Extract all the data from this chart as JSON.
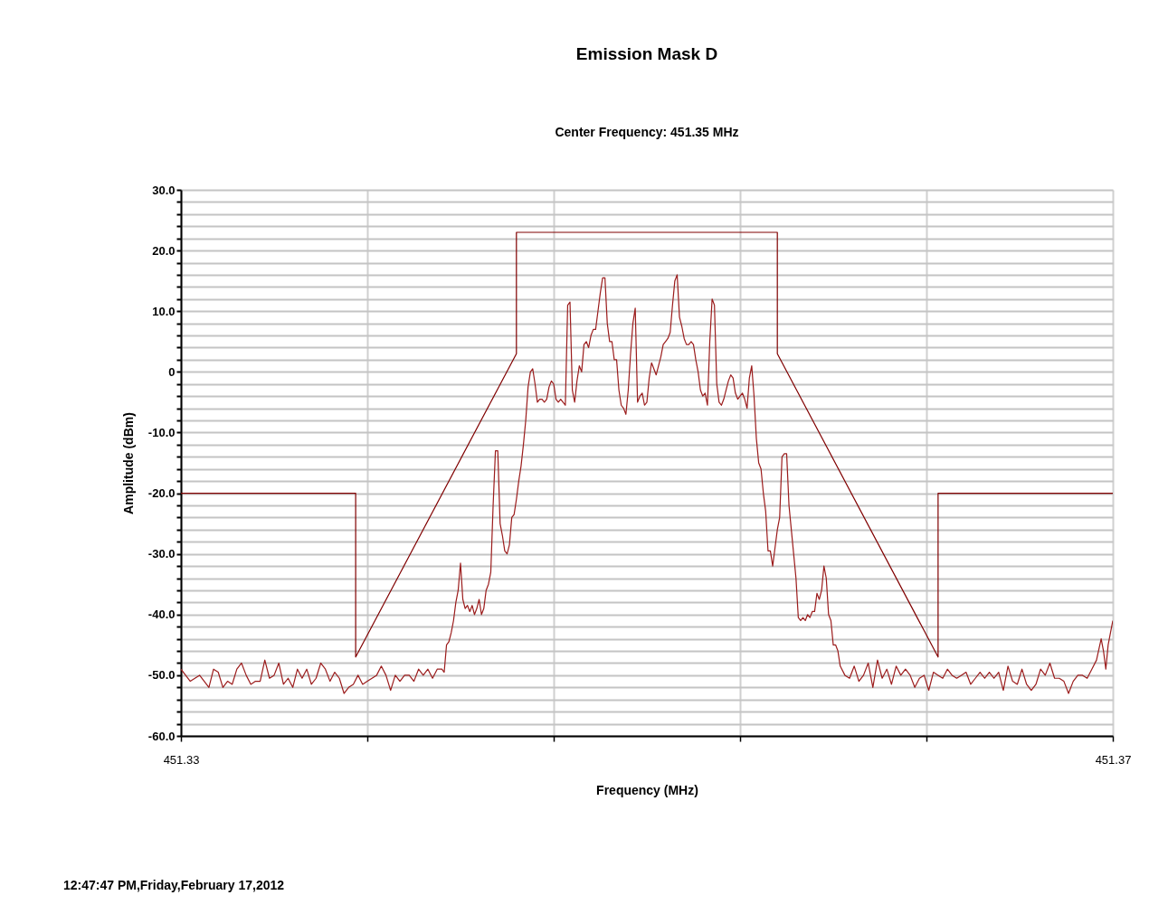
{
  "chart_data": {
    "type": "line",
    "title": "Emission Mask D",
    "subtitle": "Center Frequency:  451.35 MHz",
    "xlabel": "Frequency (MHz)",
    "ylabel": "Amplitude (dBm)",
    "annotations": [
      "12:47:47 PM,Friday,February 17,2012"
    ],
    "xlim": [
      451.33,
      451.37
    ],
    "xticks": [
      451.33,
      {
        "value": 451.338,
        "label": null
      },
      {
        "value": 451.346,
        "label": null
      },
      {
        "value": 451.354,
        "label": null
      },
      {
        "value": 451.362,
        "label": null
      },
      451.37
    ],
    "ylim": [
      -60,
      30
    ],
    "yticks": [
      {
        "value": 30,
        "label": "30.0"
      },
      {
        "value": 28,
        "label": null
      },
      {
        "value": 26,
        "label": null
      },
      {
        "value": 24,
        "label": null
      },
      {
        "value": 22,
        "label": null
      },
      {
        "value": 20,
        "label": "20.0"
      },
      {
        "value": 18,
        "label": null
      },
      {
        "value": 16,
        "label": null
      },
      {
        "value": 14,
        "label": null
      },
      {
        "value": 12,
        "label": null
      },
      {
        "value": 10,
        "label": "10.0"
      },
      {
        "value": 8,
        "label": null
      },
      {
        "value": 6,
        "label": null
      },
      {
        "value": 4,
        "label": null
      },
      {
        "value": 2,
        "label": null
      },
      0,
      {
        "value": -2,
        "label": null
      },
      {
        "value": -4,
        "label": null
      },
      {
        "value": -6,
        "label": null
      },
      {
        "value": -8,
        "label": null
      },
      {
        "value": -10,
        "label": "-10.0"
      },
      {
        "value": -12,
        "label": null
      },
      {
        "value": -14,
        "label": null
      },
      {
        "value": -16,
        "label": null
      },
      {
        "value": -18,
        "label": null
      },
      {
        "value": -20,
        "label": "-20.0"
      },
      {
        "value": -22,
        "label": null
      },
      {
        "value": -24,
        "label": null
      },
      {
        "value": -26,
        "label": null
      },
      {
        "value": -28,
        "label": null
      },
      {
        "value": -30,
        "label": "-30.0"
      },
      {
        "value": -32,
        "label": null
      },
      {
        "value": -34,
        "label": null
      },
      {
        "value": -36,
        "label": null
      },
      {
        "value": -38,
        "label": null
      },
      {
        "value": -40,
        "label": "-40.0"
      },
      {
        "value": -42,
        "label": null
      },
      {
        "value": -44,
        "label": null
      },
      {
        "value": -46,
        "label": null
      },
      {
        "value": -48,
        "label": null
      },
      {
        "value": -50,
        "label": "-50.0"
      },
      {
        "value": -52,
        "label": null
      },
      {
        "value": -54,
        "label": null
      },
      {
        "value": -56,
        "label": null
      },
      {
        "value": -58,
        "label": null
      },
      {
        "value": -60,
        "label": "-60.0"
      }
    ],
    "grid": true,
    "series": [
      {
        "color": "#800000",
        "x": [
          451.33,
          451.3375,
          451.3375,
          451.3444,
          451.3444,
          451.3556,
          451.3556,
          451.3625,
          451.3625,
          451.37
        ],
        "values": [
          -20,
          -20,
          -47,
          3,
          23,
          23,
          3,
          -47,
          -20,
          -20
        ]
      },
      {
        "color": "#9b1c1c",
        "x": [
          451.33,
          451.3302,
          451.3304,
          451.3306,
          451.3308,
          451.331,
          451.3312,
          451.3314,
          451.3316,
          451.3318,
          451.332,
          451.3322,
          451.3324,
          451.3326,
          451.3328,
          451.333,
          451.3332,
          451.3334,
          451.3336,
          451.3338,
          451.334,
          451.3342,
          451.3344,
          451.3346,
          451.3348,
          451.335,
          451.3352,
          451.3354,
          451.3356,
          451.3358,
          451.336,
          451.3362,
          451.3364,
          451.3366,
          451.3368,
          451.337,
          451.3372,
          451.3374,
          451.3376,
          451.3378,
          451.338,
          451.3382,
          451.3384,
          451.3386,
          451.3388,
          451.339,
          451.3392,
          451.3394,
          451.3396,
          451.3398,
          451.34,
          451.3402,
          451.3404,
          451.3406,
          451.3408,
          451.341,
          451.3412,
          451.3413,
          451.3414,
          451.3415,
          451.3416,
          451.3417,
          451.3418,
          451.3419,
          451.342,
          451.3421,
          451.3422,
          451.3423,
          451.3424,
          451.3425,
          451.3426,
          451.3427,
          451.3428,
          451.3429,
          451.343,
          451.3431,
          451.3432,
          451.3433,
          451.3434,
          451.3435,
          451.3436,
          451.3437,
          451.3438,
          451.3439,
          451.344,
          451.3441,
          451.3442,
          451.3443,
          451.3444,
          451.3445,
          451.3446,
          451.3447,
          451.3448,
          451.3449,
          451.345,
          451.3451,
          451.3452,
          451.3453,
          451.3454,
          451.3455,
          451.3456,
          451.3457,
          451.3458,
          451.3459,
          451.346,
          451.3461,
          451.3462,
          451.3463,
          451.3464,
          451.3465,
          451.3466,
          451.3467,
          451.3468,
          451.3469,
          451.347,
          451.3471,
          451.3472,
          451.3473,
          451.3474,
          451.3475,
          451.3476,
          451.3477,
          451.3478,
          451.3479,
          451.348,
          451.3481,
          451.3482,
          451.3483,
          451.3484,
          451.3485,
          451.3486,
          451.3487,
          451.3488,
          451.3489,
          451.349,
          451.3491,
          451.3492,
          451.3493,
          451.3494,
          451.3495,
          451.3496,
          451.3497,
          451.3498,
          451.3499,
          451.35,
          451.3501,
          451.3502,
          451.3503,
          451.3504,
          451.3505,
          451.3506,
          451.3507,
          451.3508,
          451.3509,
          451.351,
          451.3511,
          451.3512,
          451.3513,
          451.3514,
          451.3515,
          451.3516,
          451.3517,
          451.3518,
          451.3519,
          451.352,
          451.3521,
          451.3522,
          451.3523,
          451.3524,
          451.3525,
          451.3526,
          451.3527,
          451.3528,
          451.3529,
          451.353,
          451.3531,
          451.3532,
          451.3533,
          451.3534,
          451.3535,
          451.3536,
          451.3537,
          451.3538,
          451.3539,
          451.354,
          451.3541,
          451.3542,
          451.3543,
          451.3544,
          451.3545,
          451.3546,
          451.3547,
          451.3548,
          451.3549,
          451.355,
          451.3551,
          451.3552,
          451.3553,
          451.3554,
          451.3555,
          451.3556,
          451.3557,
          451.3558,
          451.3559,
          451.356,
          451.3561,
          451.3562,
          451.3563,
          451.3564,
          451.3565,
          451.3566,
          451.3567,
          451.3568,
          451.3569,
          451.357,
          451.3571,
          451.3572,
          451.3573,
          451.3574,
          451.3575,
          451.3576,
          451.3577,
          451.3578,
          451.3579,
          451.358,
          451.3581,
          451.3582,
          451.3583,
          451.3585,
          451.3587,
          451.3589,
          451.3591,
          451.3593,
          451.3595,
          451.3597,
          451.3599,
          451.3601,
          451.3603,
          451.3605,
          451.3607,
          451.3609,
          451.3611,
          451.3613,
          451.3615,
          451.3617,
          451.3619,
          451.3621,
          451.3623,
          451.3625,
          451.3627,
          451.3629,
          451.3631,
          451.3633,
          451.3635,
          451.3637,
          451.3639,
          451.3641,
          451.3643,
          451.3645,
          451.3647,
          451.3649,
          451.3651,
          451.3653,
          451.3655,
          451.3657,
          451.3659,
          451.3661,
          451.3663,
          451.3665,
          451.3667,
          451.3669,
          451.3671,
          451.3673,
          451.3675,
          451.3677,
          451.3679,
          451.3681,
          451.3683,
          451.3685,
          451.3687,
          451.3689,
          451.3691,
          451.3693,
          451.3695,
          451.3696,
          451.3697,
          451.3698,
          451.3699,
          451.37
        ],
        "values": [
          -49,
          -50,
          -51,
          -50.5,
          -50,
          -51,
          -52,
          -49,
          -49.5,
          -52,
          -51,
          -51.5,
          -49,
          -48,
          -50,
          -51.5,
          -51,
          -51,
          -47.5,
          -50.5,
          -50,
          -48,
          -51.5,
          -50.5,
          -52,
          -49,
          -50.5,
          -49,
          -51.5,
          -50.5,
          -48,
          -49,
          -51,
          -49.5,
          -50.5,
          -53,
          -52,
          -51.5,
          -50,
          -51.5,
          -51,
          -50.5,
          -50,
          -48.5,
          -50,
          -52.5,
          -50,
          -51,
          -50,
          -50,
          -51,
          -49,
          -50,
          -49,
          -50.5,
          -49,
          -49,
          -49.5,
          -45,
          -44.5,
          -43,
          -41,
          -38,
          -36,
          -31.5,
          -37.5,
          -39,
          -38.5,
          -39.5,
          -38.5,
          -40,
          -39,
          -37.5,
          -40,
          -39,
          -36,
          -35,
          -33,
          -22,
          -13,
          -13,
          -25,
          -27,
          -29.5,
          -30,
          -28.5,
          -24,
          -23.5,
          -21,
          -18,
          -15.5,
          -12,
          -8,
          -2.5,
          0,
          0.5,
          -2,
          -5,
          -4.5,
          -4.5,
          -5,
          -4.5,
          -2.5,
          -1.5,
          -2,
          -4.5,
          -5,
          -4.5,
          -5,
          -5.5,
          11,
          11.5,
          -3,
          -5,
          -1.5,
          1,
          0,
          4.5,
          5,
          4,
          6,
          7,
          7,
          10,
          13,
          15.5,
          15.5,
          8,
          5,
          5,
          2,
          2,
          -3,
          -5.5,
          -6,
          -7,
          -3,
          3,
          8,
          10.5,
          -5,
          -4,
          -3.5,
          -5.5,
          -5,
          -1,
          1.5,
          0.5,
          -0.5,
          1,
          2.5,
          4.5,
          5,
          5.5,
          6.5,
          11,
          15,
          16,
          9,
          7.5,
          5.5,
          4.5,
          4.5,
          5,
          4.5,
          2,
          0,
          -3,
          -4,
          -3.5,
          -5.5,
          5,
          12,
          11,
          -2,
          -5,
          -5.5,
          -4.5,
          -3,
          -1.5,
          -0.5,
          -1,
          -3.5,
          -4.5,
          -4,
          -3.5,
          -4.5,
          -6,
          -1,
          1,
          -4,
          -11,
          -15,
          -16,
          -20,
          -23,
          -29.5,
          -29.5,
          -32,
          -29,
          -26,
          -24,
          -14,
          -13.5,
          -13.5,
          -22,
          -26,
          -30,
          -34,
          -40.5,
          -41,
          -40.5,
          -41,
          -40,
          -40.5,
          -39.5,
          -39.5,
          -36.5,
          -37.5,
          -36,
          -32,
          -34,
          -40,
          -41,
          -45,
          -45,
          -46,
          -48.5,
          -50,
          -50.5,
          -48.5,
          -51,
          -50,
          -48,
          -52,
          -47.5,
          -50.5,
          -49,
          -51.5,
          -48.5,
          -50,
          -49,
          -50,
          -52,
          -50.5,
          -50,
          -52.5,
          -49.5,
          -50,
          -50.5,
          -49,
          -50,
          -50.5,
          -50,
          -49.5,
          -51.5,
          -50.5,
          -49.5,
          -50.5,
          -49.5,
          -50.5,
          -49.5,
          -52.5,
          -48.5,
          -51,
          -51.5,
          -49,
          -51.5,
          -52.5,
          -51.5,
          -49,
          -50,
          -48,
          -50.5,
          -50.5,
          -51,
          -53,
          -51,
          -50,
          -50,
          -50.5,
          -49,
          -47.5,
          -44,
          -46,
          -49,
          -45,
          -43,
          -41
        ]
      }
    ]
  }
}
